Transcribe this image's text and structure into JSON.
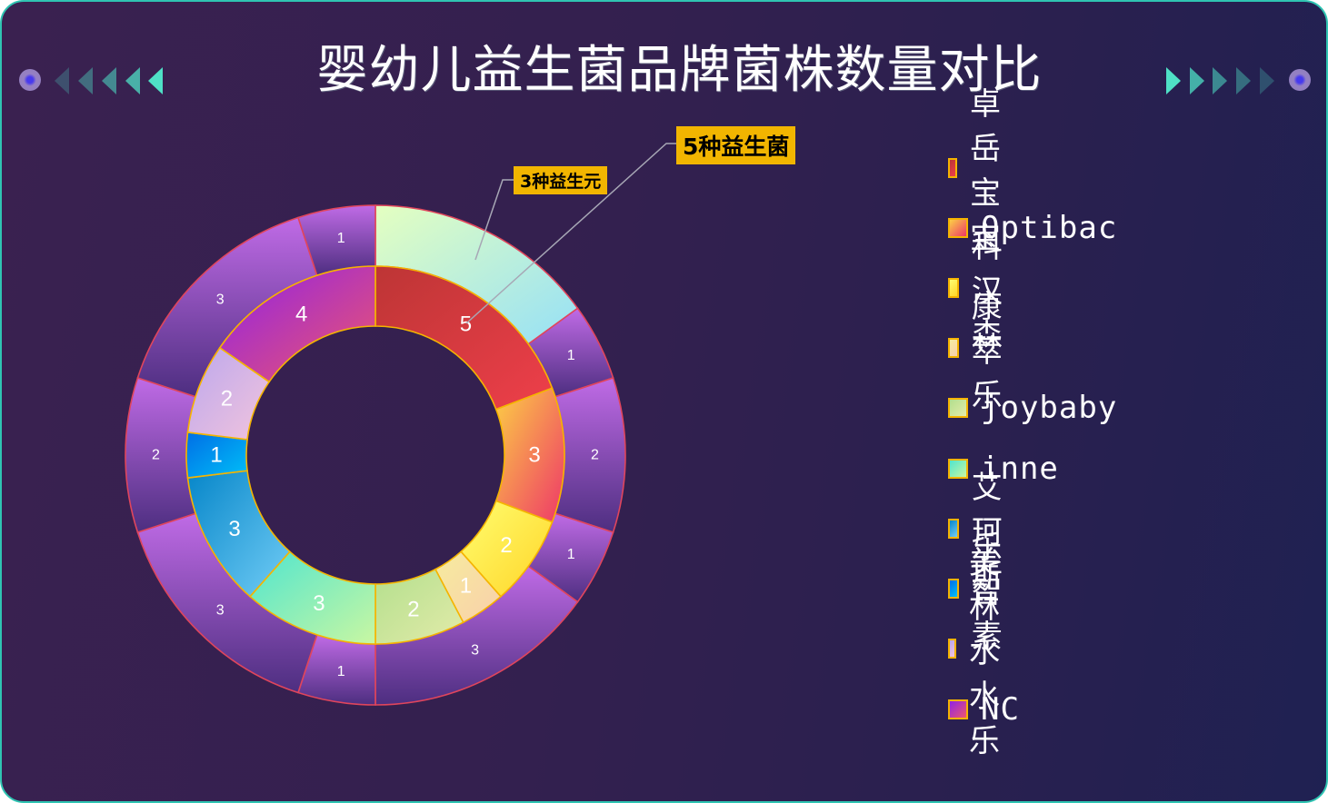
{
  "title": "婴幼儿益生菌品牌菌株数量对比",
  "theme": {
    "frame_border": "#2fc4b2",
    "callout_bg": "#f2b500",
    "inner_stroke": "#f5b400",
    "outer_stroke": "#e0455c"
  },
  "chart_data": {
    "type": "pie",
    "title": "婴幼儿益生菌品牌菌株数量对比",
    "subtype": "nested-donut",
    "center": [
      413,
      501
    ],
    "inner_ring": {
      "name": "品牌菌株数量",
      "radius": [
        142,
        208
      ],
      "categories": [
        "卓岳宝宝",
        "Optibac",
        "科汉森",
        "康萃乐",
        "joybaby",
        "inne",
        "艾珂斯",
        "乐智素",
        "美林水水乐",
        "NC"
      ],
      "values": [
        5,
        3,
        2,
        1,
        2,
        3,
        3,
        1,
        2,
        4
      ],
      "colors": [
        [
          "#bd3535",
          "#ee3f4a"
        ],
        [
          "#fccf45",
          "#ee3768"
        ],
        [
          "#fffe70",
          "#ffd427"
        ],
        [
          "#f6ec9e",
          "#f9cfab"
        ],
        [
          "#b3df8d",
          "#e3ebaa"
        ],
        [
          "#4fe5cf",
          "#c9f7a2"
        ],
        [
          "#0686c9",
          "#72cdf6"
        ],
        [
          "#006ee6",
          "#00bff7"
        ],
        [
          "#bba7ed",
          "#f2c4dd"
        ],
        [
          "#8f22e6",
          "#ee566e"
        ]
      ]
    },
    "outer_ring": {
      "name": "益生菌/益生元",
      "radius": [
        208,
        275
      ],
      "values": [
        3,
        1,
        2,
        1,
        3,
        1,
        3,
        2,
        3,
        1
      ],
      "labels": [
        "",
        "1",
        "2",
        "1",
        "3",
        "1",
        "3",
        "2",
        "3",
        "1"
      ],
      "first_colors": [
        "#e4ffc0",
        "#95e0f7"
      ],
      "rest_colors": [
        "#c06be6",
        "#4d2e80"
      ]
    },
    "annotations": [
      {
        "text": "3种益生元",
        "target": "outer_ring.0"
      },
      {
        "text": "5种益生菌",
        "target": "inner_ring.0"
      }
    ],
    "legend_position": "right"
  },
  "legend": {
    "items": [
      {
        "label": "卓岳宝宝"
      },
      {
        "label": "Optibac"
      },
      {
        "label": "科汉森"
      },
      {
        "label": "康萃乐"
      },
      {
        "label": "joybaby"
      },
      {
        "label": "inne"
      },
      {
        "label": "艾珂斯"
      },
      {
        "label": "乐智素"
      },
      {
        "label": "美林水水乐"
      },
      {
        "label": "NC"
      }
    ]
  },
  "callouts": {
    "prebiotic": "3种益生元",
    "probiotic": "5种益生菌"
  }
}
